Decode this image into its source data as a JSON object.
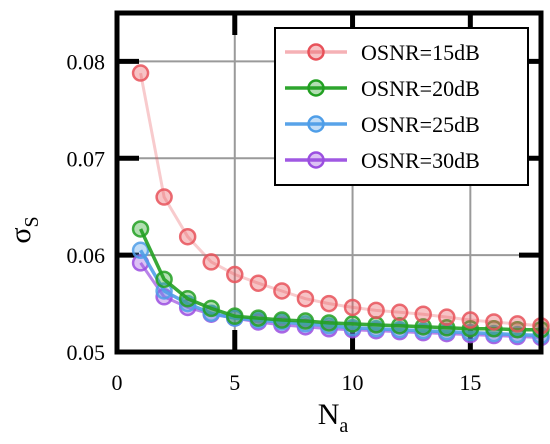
{
  "chart_data": {
    "type": "line",
    "xlabel": {
      "main": "N",
      "sub": "a"
    },
    "ylabel": {
      "main": "σ",
      "sub": "S"
    },
    "xlim": [
      0,
      18
    ],
    "ylim": [
      0.05,
      0.085
    ],
    "xticks": [
      0,
      5,
      10,
      15
    ],
    "yticks": [
      0.05,
      0.06,
      0.07,
      0.08
    ],
    "grid": true,
    "legend_position": "top-right",
    "x": [
      1,
      2,
      3,
      4,
      5,
      6,
      7,
      8,
      9,
      10,
      11,
      12,
      13,
      14,
      15,
      16,
      17,
      18
    ],
    "series": [
      {
        "name": "OSNR=15dB",
        "color": "#e8525a",
        "values": [
          0.0788,
          0.066,
          0.0619,
          0.0593,
          0.058,
          0.0571,
          0.0563,
          0.0555,
          0.055,
          0.0546,
          0.0543,
          0.0541,
          0.0539,
          0.0536,
          0.0533,
          0.0531,
          0.0529,
          0.0527
        ]
      },
      {
        "name": "OSNR=20dB",
        "color": "#22a022",
        "values": [
          0.0627,
          0.0575,
          0.0555,
          0.0545,
          0.0537,
          0.0535,
          0.0533,
          0.0532,
          0.053,
          0.0529,
          0.0528,
          0.0527,
          0.0526,
          0.0525,
          0.0524,
          0.0524,
          0.0523,
          0.0523
        ]
      },
      {
        "name": "OSNR=25dB",
        "color": "#4f9ee8",
        "values": [
          0.0605,
          0.0563,
          0.055,
          0.054,
          0.0535,
          0.0533,
          0.0531,
          0.0529,
          0.0527,
          0.0525,
          0.0524,
          0.0523,
          0.0522,
          0.0521,
          0.052,
          0.0519,
          0.0518,
          0.0517
        ]
      },
      {
        "name": "OSNR=30dB",
        "color": "#9b4fe0",
        "values": [
          0.0592,
          0.0557,
          0.0546,
          0.0539,
          0.0535,
          0.0531,
          0.0528,
          0.0526,
          0.0524,
          0.0523,
          0.0522,
          0.0521,
          0.052,
          0.0519,
          0.0518,
          0.0517,
          0.0516,
          0.0515
        ]
      }
    ]
  }
}
